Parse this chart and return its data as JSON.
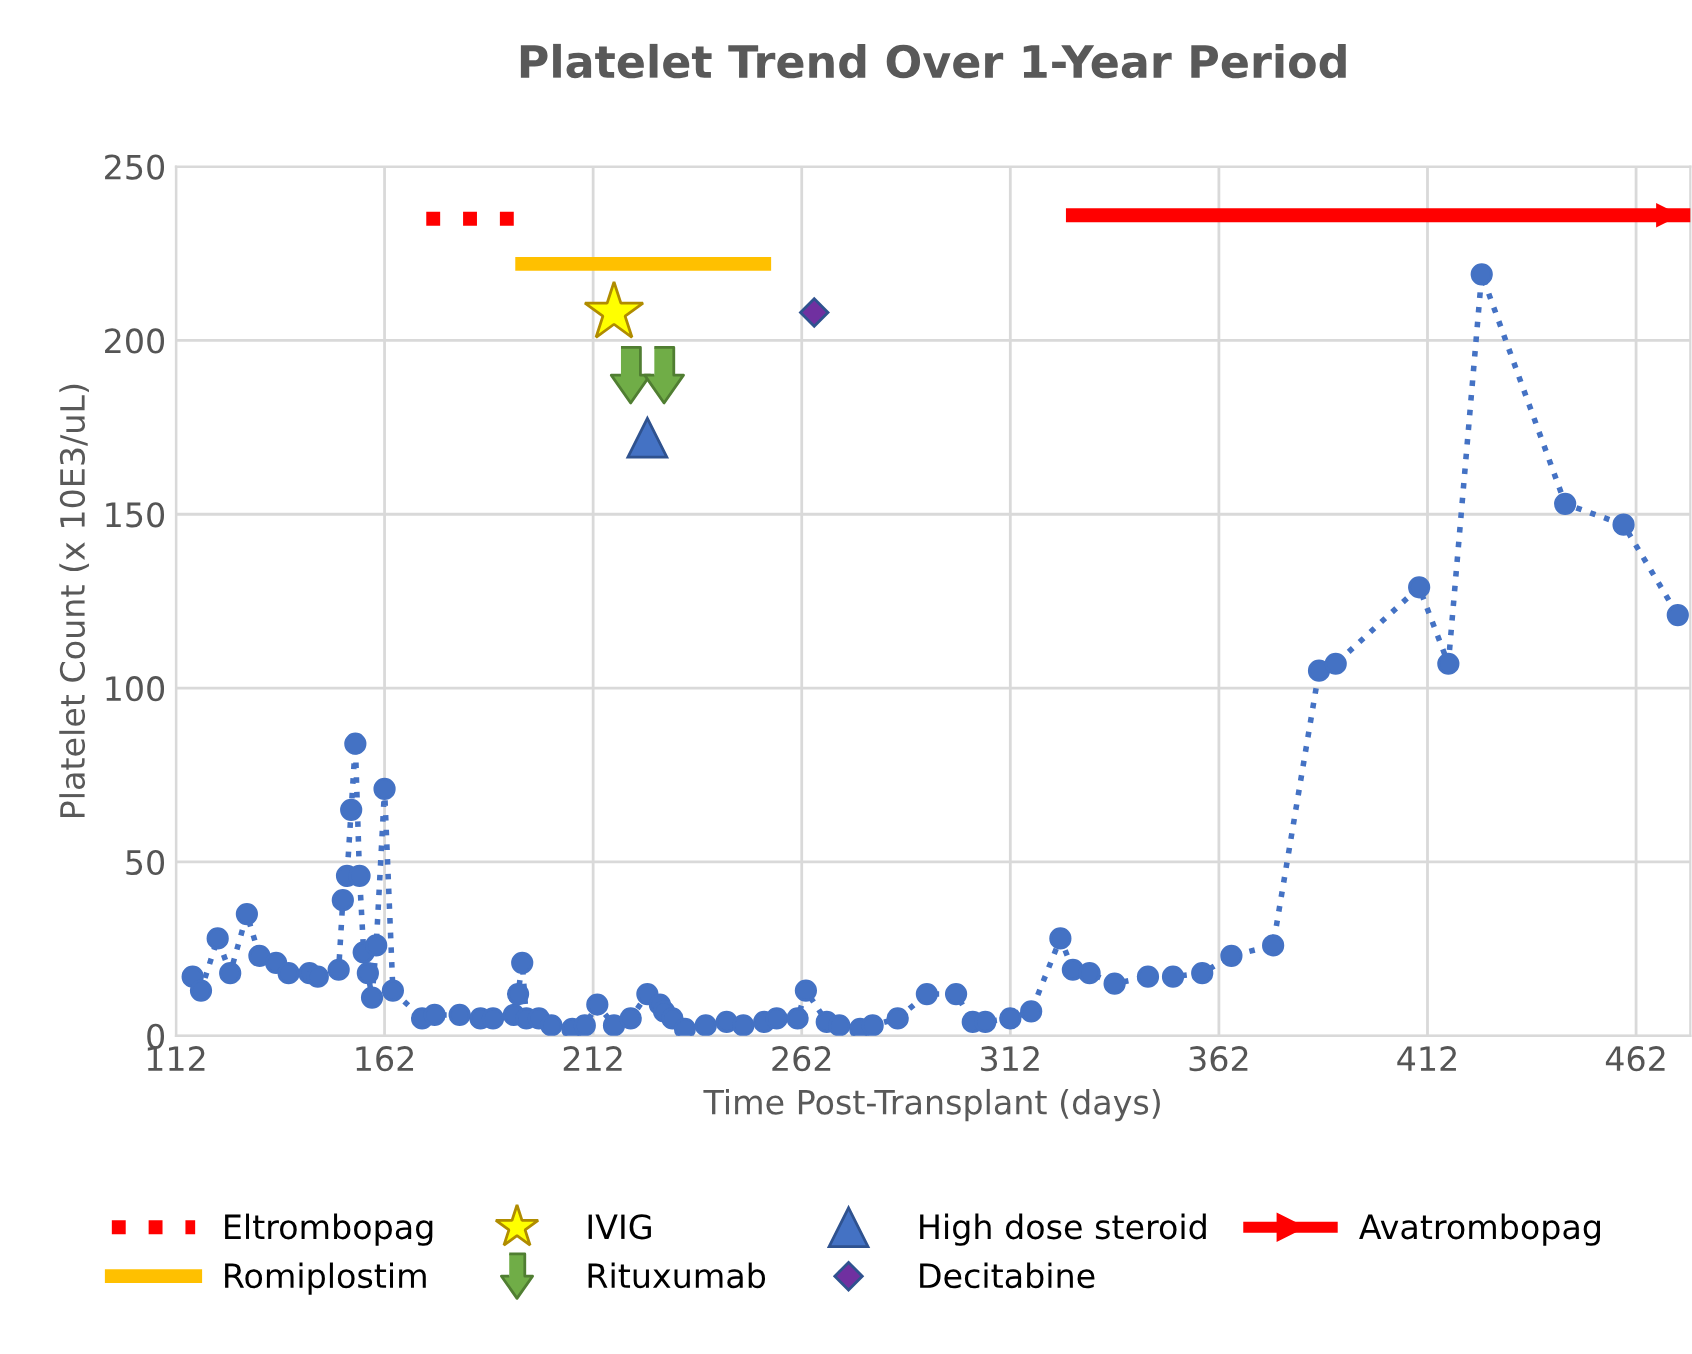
{
  "chart_data": {
    "type": "line",
    "title": "Platelet Trend Over 1-Year Period",
    "xlabel": "Time Post-Transplant (days)",
    "ylabel": "Platelet Count (x 10E3/uL)",
    "xlim": [
      112,
      475
    ],
    "xticks": [
      112,
      162,
      212,
      262,
      312,
      362,
      412,
      462
    ],
    "ylim": [
      0,
      250
    ],
    "yticks": [
      0,
      50,
      100,
      150,
      200,
      250
    ],
    "grid": true,
    "legend": "bottom",
    "series": [
      {
        "color": "#4472c4",
        "marker": "circle",
        "line_style": "dotted",
        "x": [
          116,
          118,
          122,
          125,
          129,
          132,
          136,
          139,
          144,
          146,
          151,
          152,
          153,
          154,
          155,
          156,
          157,
          158,
          159,
          160,
          162,
          164,
          171,
          174,
          180,
          185,
          188,
          193,
          194,
          195,
          196,
          199,
          202,
          207,
          210,
          213,
          217,
          221,
          225,
          228,
          229,
          231,
          234,
          239,
          244,
          248,
          253,
          256,
          261,
          263,
          268,
          271,
          276,
          279,
          285,
          292,
          299,
          303,
          306,
          312,
          317,
          324,
          327,
          331,
          337,
          345,
          351,
          358,
          365,
          375,
          386,
          390,
          410,
          417,
          425,
          445,
          459,
          472
        ],
        "values": [
          17,
          13,
          28,
          18,
          35,
          23,
          21,
          18,
          18,
          17,
          19,
          39,
          46,
          65,
          84,
          46,
          24,
          18,
          11,
          26,
          71,
          13,
          5,
          6,
          6,
          5,
          5,
          6,
          12,
          21,
          5,
          5,
          3,
          2,
          3,
          9,
          3,
          5,
          12,
          9,
          7,
          5,
          2,
          3,
          4,
          3,
          4,
          5,
          5,
          13,
          4,
          3,
          2,
          3,
          5,
          12,
          12,
          4,
          4,
          5,
          7,
          28,
          19,
          18,
          15,
          17,
          17,
          18,
          23,
          26,
          105,
          107,
          129,
          107,
          219,
          153,
          147,
          121
        ]
      },
      {
        "type": "line",
        "name": "Eltrombopag",
        "color": "#ff0000",
        "marker": "none",
        "line_style": "dotted",
        "x": [
          172,
          194
        ],
        "values": [
          235,
          235
        ]
      },
      {
        "type": "line",
        "name": "Romiplostim",
        "color": "#ffc000",
        "marker": "none",
        "line_style": "solid",
        "x": [
          195,
          253
        ],
        "values": [
          222,
          222
        ]
      },
      {
        "type": "scatter",
        "name": "IVIG",
        "color": "#ffff00",
        "marker": "star",
        "x": [
          217
        ],
        "values": [
          208
        ]
      },
      {
        "type": "scatter",
        "name": "Rituxumab",
        "color": "#70ad47",
        "x": [
          221,
          229
        ],
        "values": [
          190,
          190
        ]
      },
      {
        "type": "scatter",
        "name": "High dose steroid",
        "color": "#4472c4",
        "marker": "triangle",
        "x": [
          225
        ],
        "values": [
          172
        ]
      },
      {
        "type": "scatter",
        "name": "Decitabine",
        "color": "#7030a0",
        "marker": "diamond",
        "x": [
          265
        ],
        "values": [
          208
        ]
      },
      {
        "type": "line",
        "name": "Avatrombopag",
        "color": "#ff0000",
        "line_style": "solid",
        "x": [
          327,
          474
        ],
        "values": [
          236,
          236
        ]
      }
    ]
  }
}
